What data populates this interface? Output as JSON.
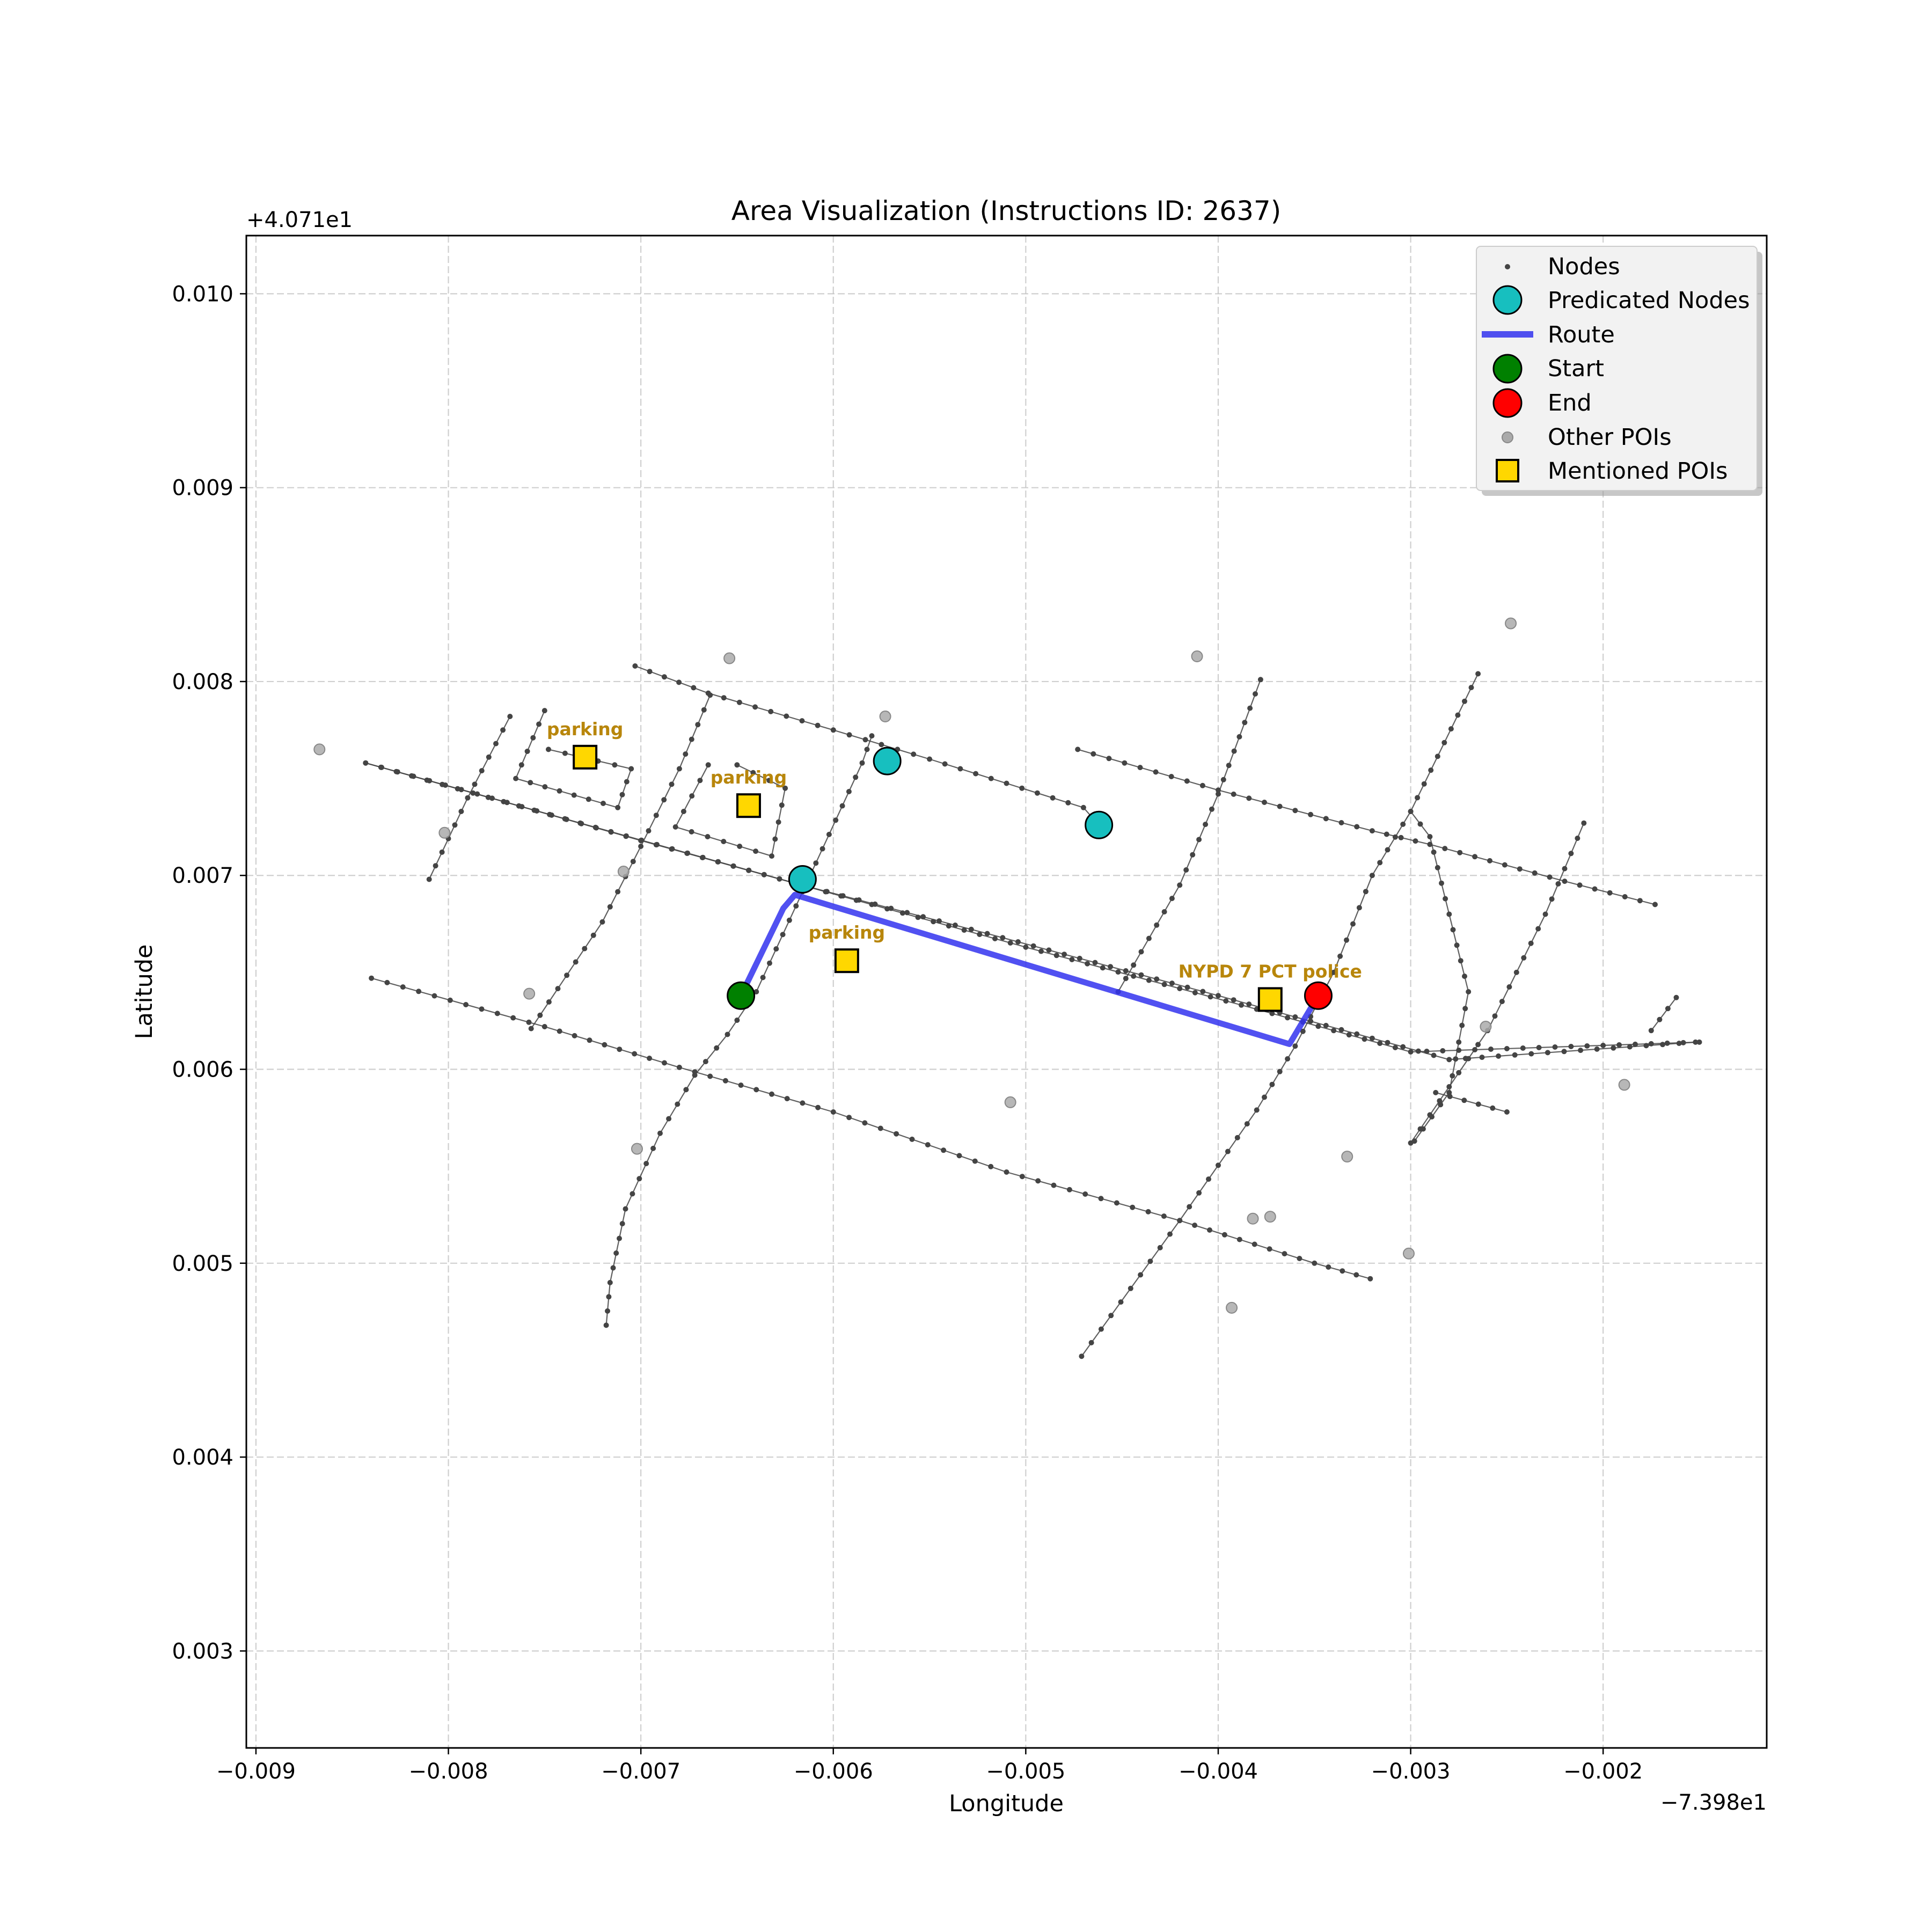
{
  "chart_data": {
    "type": "scatter",
    "title": "Area Visualization (Instructions ID: 2637)",
    "xlabel": "Longitude",
    "ylabel": "Latitude",
    "x_offset_label": "−7.398e1",
    "y_offset_label": "+4.071e1",
    "xlim": [
      -0.00905,
      -0.00115
    ],
    "ylim": [
      0.0025,
      0.0103
    ],
    "xticks": [
      -0.009,
      -0.008,
      -0.007,
      -0.006,
      -0.005,
      -0.004,
      -0.003,
      -0.002
    ],
    "xtick_labels": [
      "−0.009",
      "−0.008",
      "−0.007",
      "−0.006",
      "−0.005",
      "−0.004",
      "−0.003",
      "−0.002"
    ],
    "yticks": [
      0.003,
      0.004,
      0.005,
      0.006,
      0.007,
      0.008,
      0.009,
      0.01
    ],
    "ytick_labels": [
      "0.003",
      "0.004",
      "0.005",
      "0.006",
      "0.007",
      "0.008",
      "0.009",
      "0.010"
    ],
    "grid": true,
    "legend_position": "top-right",
    "legend": [
      {
        "label": "Nodes",
        "marker": "small-dot",
        "color": "#444444"
      },
      {
        "label": "Predicated Nodes",
        "marker": "circle",
        "color": "#17bfbf"
      },
      {
        "label": "Route",
        "marker": "line",
        "color": "#3333ee"
      },
      {
        "label": "Start",
        "marker": "circle",
        "color": "#008000"
      },
      {
        "label": "End",
        "marker": "circle",
        "color": "#ff0000"
      },
      {
        "label": "Other POIs",
        "marker": "dot",
        "color": "#aaaaaa"
      },
      {
        "label": "Mentioned POIs",
        "marker": "square",
        "color": "#ffd700"
      }
    ],
    "streets": [
      [
        [
          -0.00843,
          0.00758
        ],
        [
          -0.00785,
          0.00742
        ],
        [
          -0.007,
          0.00718
        ],
        [
          -0.0062,
          0.00696
        ],
        [
          -0.005,
          0.00663
        ],
        [
          -0.0038,
          0.00631
        ],
        [
          -0.003,
          0.00609
        ],
        [
          -0.0015,
          0.00614
        ]
      ],
      [
        [
          -0.00843,
          0.00758
        ],
        [
          -0.0062,
          0.00696
        ],
        [
          -0.0052,
          0.0067
        ],
        [
          -0.004,
          0.00638
        ],
        [
          -0.0028,
          0.00605
        ],
        [
          -0.00152,
          0.00614
        ]
      ],
      [
        [
          -0.00703,
          0.00808
        ],
        [
          -0.00665,
          0.00794
        ],
        [
          -0.006,
          0.00775
        ],
        [
          -0.0055,
          0.0076
        ],
        [
          -0.0047,
          0.00735
        ],
        [
          -0.00462,
          0.00726
        ]
      ],
      [
        [
          -0.00473,
          0.00765
        ],
        [
          -0.004,
          0.00744
        ],
        [
          -0.0032,
          0.00723
        ],
        [
          -0.0029,
          0.00716
        ],
        [
          -0.0022,
          0.00697
        ],
        [
          -0.00173,
          0.00685
        ]
      ],
      [
        [
          -0.0084,
          0.00647
        ],
        [
          -0.0075,
          0.00622
        ],
        [
          -0.0068,
          0.00601
        ],
        [
          -0.006,
          0.00578
        ],
        [
          -0.0051,
          0.00547
        ],
        [
          -0.0042,
          0.00522
        ],
        [
          -0.0035,
          0.005
        ],
        [
          -0.00321,
          0.00492
        ]
      ],
      [
        [
          -0.00718,
          0.00468
        ],
        [
          -0.00716,
          0.0049
        ],
        [
          -0.00708,
          0.00528
        ],
        [
          -0.0069,
          0.00567
        ],
        [
          -0.00672,
          0.00597
        ],
        [
          -0.00655,
          0.00618
        ],
        [
          -0.0064,
          0.0064
        ],
        [
          -0.00585,
          0.00758
        ],
        [
          -0.0058,
          0.00772
        ]
      ],
      [
        [
          -0.00757,
          0.00621
        ],
        [
          -0.0072,
          0.00676
        ],
        [
          -0.007,
          0.00715
        ],
        [
          -0.0068,
          0.00755
        ],
        [
          -0.00664,
          0.00793
        ]
      ],
      [
        [
          -0.0081,
          0.00698
        ],
        [
          -0.0079,
          0.0074
        ],
        [
          -0.00768,
          0.00782
        ]
      ],
      [
        [
          -0.00471,
          0.00452
        ],
        [
          -0.0042,
          0.00522
        ],
        [
          -0.0038,
          0.00579
        ],
        [
          -0.0036,
          0.00612
        ],
        [
          -0.0034,
          0.0065
        ],
        [
          -0.0032,
          0.007
        ],
        [
          -0.003,
          0.00733
        ]
      ],
      [
        [
          -0.00452,
          0.0064
        ],
        [
          -0.0042,
          0.00695
        ],
        [
          -0.004,
          0.00742
        ],
        [
          -0.00378,
          0.00801
        ]
      ],
      [
        [
          -0.00298,
          0.00563
        ],
        [
          -0.0028,
          0.00588
        ],
        [
          -0.0027,
          0.0064
        ],
        [
          -0.0029,
          0.0072
        ],
        [
          -0.003,
          0.00733
        ],
        [
          -0.00265,
          0.00804
        ]
      ],
      [
        [
          -0.003,
          0.00562
        ],
        [
          -0.0026,
          0.0062
        ],
        [
          -0.0023,
          0.0068
        ],
        [
          -0.0021,
          0.00727
        ]
      ],
      [
        [
          -0.00287,
          0.00588
        ],
        [
          -0.0025,
          0.00578
        ]
      ],
      [
        [
          -0.00175,
          0.0062
        ],
        [
          -0.00162,
          0.00637
        ]
      ]
    ],
    "parking_loops": [
      [
        [
          -0.0075,
          0.00785
        ],
        [
          -0.00765,
          0.0075
        ],
        [
          -0.00712,
          0.00735
        ],
        [
          -0.00705,
          0.00755
        ],
        [
          -0.00748,
          0.00765
        ]
      ],
      [
        [
          -0.00665,
          0.00757
        ],
        [
          -0.00682,
          0.00725
        ],
        [
          -0.00632,
          0.0071
        ],
        [
          -0.00625,
          0.00745
        ],
        [
          -0.0065,
          0.00757
        ]
      ]
    ],
    "route": [
      [
        -0.00648,
        0.00638
      ],
      [
        -0.00626,
        0.00683
      ],
      [
        -0.0062,
        0.0069
      ],
      [
        -0.00363,
        0.00613
      ],
      [
        -0.00348,
        0.00638
      ]
    ],
    "predicated_nodes": [
      [
        -0.00616,
        0.00698
      ],
      [
        -0.00572,
        0.00759
      ],
      [
        -0.00462,
        0.00726
      ]
    ],
    "start": [
      -0.00648,
      0.00638
    ],
    "end": [
      -0.00348,
      0.00638
    ],
    "other_pois": [
      [
        -0.00867,
        0.00765
      ],
      [
        -0.00802,
        0.00722
      ],
      [
        -0.00709,
        0.00702
      ],
      [
        -0.00654,
        0.00812
      ],
      [
        -0.00573,
        0.00782
      ],
      [
        -0.00758,
        0.00639
      ],
      [
        -0.00702,
        0.00559
      ],
      [
        -0.00508,
        0.00583
      ],
      [
        -0.00411,
        0.00813
      ],
      [
        -0.00248,
        0.0083
      ],
      [
        -0.00333,
        0.00555
      ],
      [
        -0.00301,
        0.00505
      ],
      [
        -0.00261,
        0.00622
      ],
      [
        -0.00382,
        0.00523
      ],
      [
        -0.00373,
        0.00524
      ],
      [
        -0.00393,
        0.00477
      ],
      [
        -0.00189,
        0.00592
      ]
    ],
    "mentioned_pois": [
      {
        "label": "parking",
        "lon": -0.00729,
        "lat": 0.00761
      },
      {
        "label": "parking",
        "lon": -0.00644,
        "lat": 0.00736
      },
      {
        "label": "parking",
        "lon": -0.00593,
        "lat": 0.00656
      },
      {
        "label": "NYPD 7 PCT police",
        "lon": -0.00373,
        "lat": 0.00636
      }
    ]
  }
}
